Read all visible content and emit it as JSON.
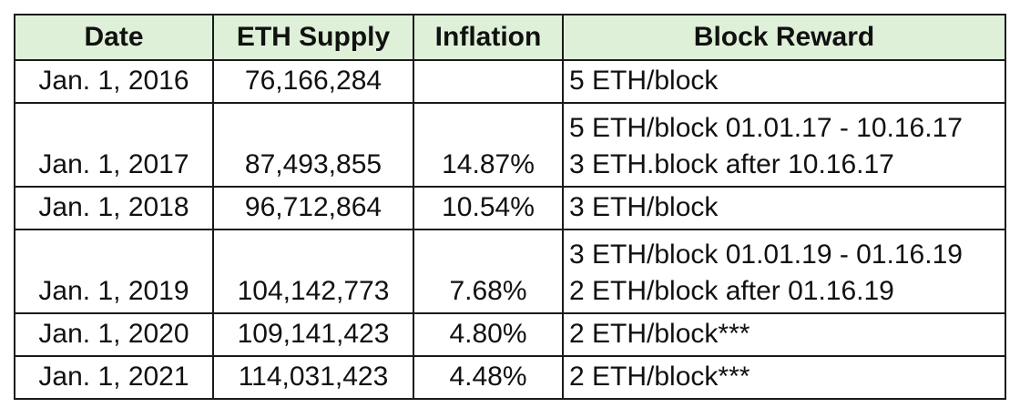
{
  "colors": {
    "header_bg": "#dff0d8",
    "border": "#1a1a1a",
    "text": "#111111"
  },
  "chart_data": {
    "type": "table",
    "columns": [
      "Date",
      "ETH Supply",
      "Inflation",
      "Block Reward"
    ],
    "rows": [
      {
        "date": "Jan. 1, 2016",
        "supply": "76,166,284",
        "inflation": "",
        "reward": [
          "5 ETH/block"
        ]
      },
      {
        "date": "Jan. 1, 2017",
        "supply": "87,493,855",
        "inflation": "14.87%",
        "reward": [
          "5 ETH/block 01.01.17 - 10.16.17",
          "3 ETH.block after 10.16.17"
        ]
      },
      {
        "date": "Jan. 1, 2018",
        "supply": "96,712,864",
        "inflation": "10.54%",
        "reward": [
          "3 ETH/block"
        ]
      },
      {
        "date": "Jan. 1, 2019",
        "supply": "104,142,773",
        "inflation": "7.68%",
        "reward": [
          "3 ETH/block 01.01.19 - 01.16.19",
          "2 ETH/block after 01.16.19"
        ]
      },
      {
        "date": "Jan. 1, 2020",
        "supply": "109,141,423",
        "inflation": "4.80%",
        "reward": [
          "2 ETH/block***"
        ]
      },
      {
        "date": "Jan. 1, 2021",
        "supply": "114,031,423",
        "inflation": "4.48%",
        "reward": [
          "2 ETH/block***"
        ]
      }
    ]
  }
}
